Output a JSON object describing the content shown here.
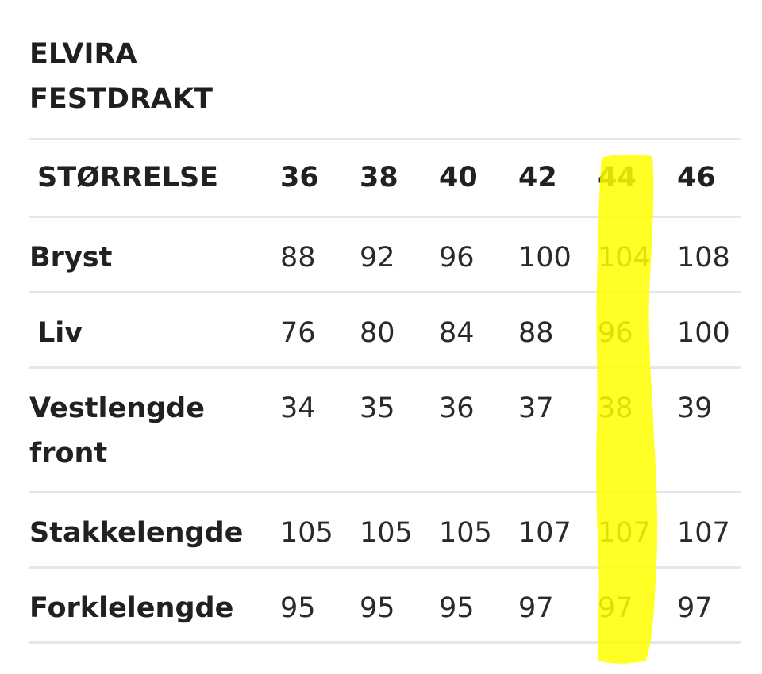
{
  "title": {
    "line1": "ELVIRA",
    "line2": "FESTDRAKT"
  },
  "table": {
    "header": {
      "label": "STØRRELSE",
      "sizes": [
        "36",
        "38",
        "40",
        "42",
        "44",
        "46"
      ]
    },
    "rows": [
      {
        "label": "Bryst",
        "values": [
          "88",
          "92",
          "96",
          "100",
          "104",
          "108"
        ]
      },
      {
        "label": "Liv",
        "values": [
          "76",
          "80",
          "84",
          "88",
          "96",
          "100"
        ]
      },
      {
        "label": "Vestlengde front",
        "values": [
          "34",
          "35",
          "36",
          "37",
          "38",
          "39"
        ]
      },
      {
        "label": "Stakkelengde",
        "values": [
          "105",
          "105",
          "105",
          "107",
          "107",
          "107"
        ]
      },
      {
        "label": "Forklelengde",
        "values": [
          "95",
          "95",
          "95",
          "97",
          "97",
          "97"
        ]
      }
    ]
  },
  "highlight": {
    "color": "#ffff00",
    "highlighted_size": "44"
  }
}
